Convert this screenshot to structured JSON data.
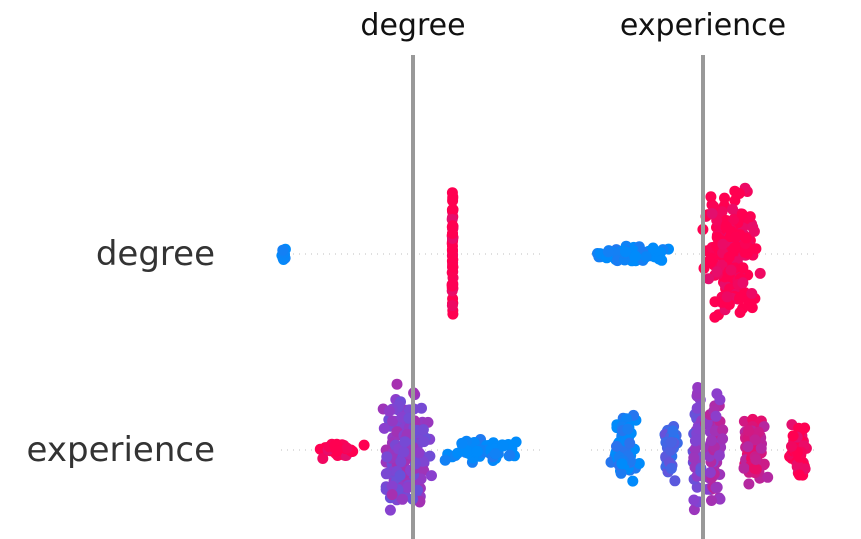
{
  "chart_data": {
    "type": "scatter",
    "title": "",
    "columns": [
      "degree",
      "experience"
    ],
    "rows": [
      "degree",
      "experience"
    ],
    "color_scale": {
      "low": "#008bfb",
      "mid": "#8a3fce",
      "high": "#ff0051"
    },
    "reference_line_color": "#999999",
    "panels": [
      {
        "row": "degree",
        "col": "degree",
        "clusters": [
          {
            "x": -0.98,
            "spread": 0.02,
            "height": 0.1,
            "color": 0.0,
            "count": 14
          },
          {
            "x": 0.3,
            "spread": 0.005,
            "height": 0.95,
            "color": 1.0,
            "count": 60
          }
        ]
      },
      {
        "row": "degree",
        "col": "experience",
        "clusters": [
          {
            "x": -0.6,
            "spread": 0.45,
            "height": 0.12,
            "color": 0.0,
            "count": 70
          },
          {
            "x": 0.25,
            "spread": 0.3,
            "height": 0.95,
            "color": 1.0,
            "count": 220
          }
        ]
      },
      {
        "row": "experience",
        "col": "degree",
        "clusters": [
          {
            "x": -0.55,
            "spread": 0.2,
            "height": 0.12,
            "color": 1.0,
            "count": 40
          },
          {
            "x": -0.05,
            "spread": 0.25,
            "height": 0.95,
            "color": 0.5,
            "count": 180
          },
          {
            "x": 0.55,
            "spread": 0.35,
            "height": 0.2,
            "color": 0.0,
            "count": 60
          }
        ]
      },
      {
        "row": "experience",
        "col": "experience",
        "clusters": [
          {
            "x": -0.7,
            "spread": 0.15,
            "height": 0.55,
            "color": 0.05,
            "count": 70
          },
          {
            "x": -0.3,
            "spread": 0.1,
            "height": 0.5,
            "color": 0.25,
            "count": 50
          },
          {
            "x": -0.05,
            "spread": 0.05,
            "height": 0.95,
            "color": 0.45,
            "count": 40
          },
          {
            "x": 0.1,
            "spread": 0.1,
            "height": 0.9,
            "color": 0.6,
            "count": 60
          },
          {
            "x": 0.45,
            "spread": 0.15,
            "height": 0.5,
            "color": 0.8,
            "count": 70
          },
          {
            "x": 0.85,
            "spread": 0.1,
            "height": 0.4,
            "color": 1.0,
            "count": 60
          }
        ]
      }
    ]
  }
}
